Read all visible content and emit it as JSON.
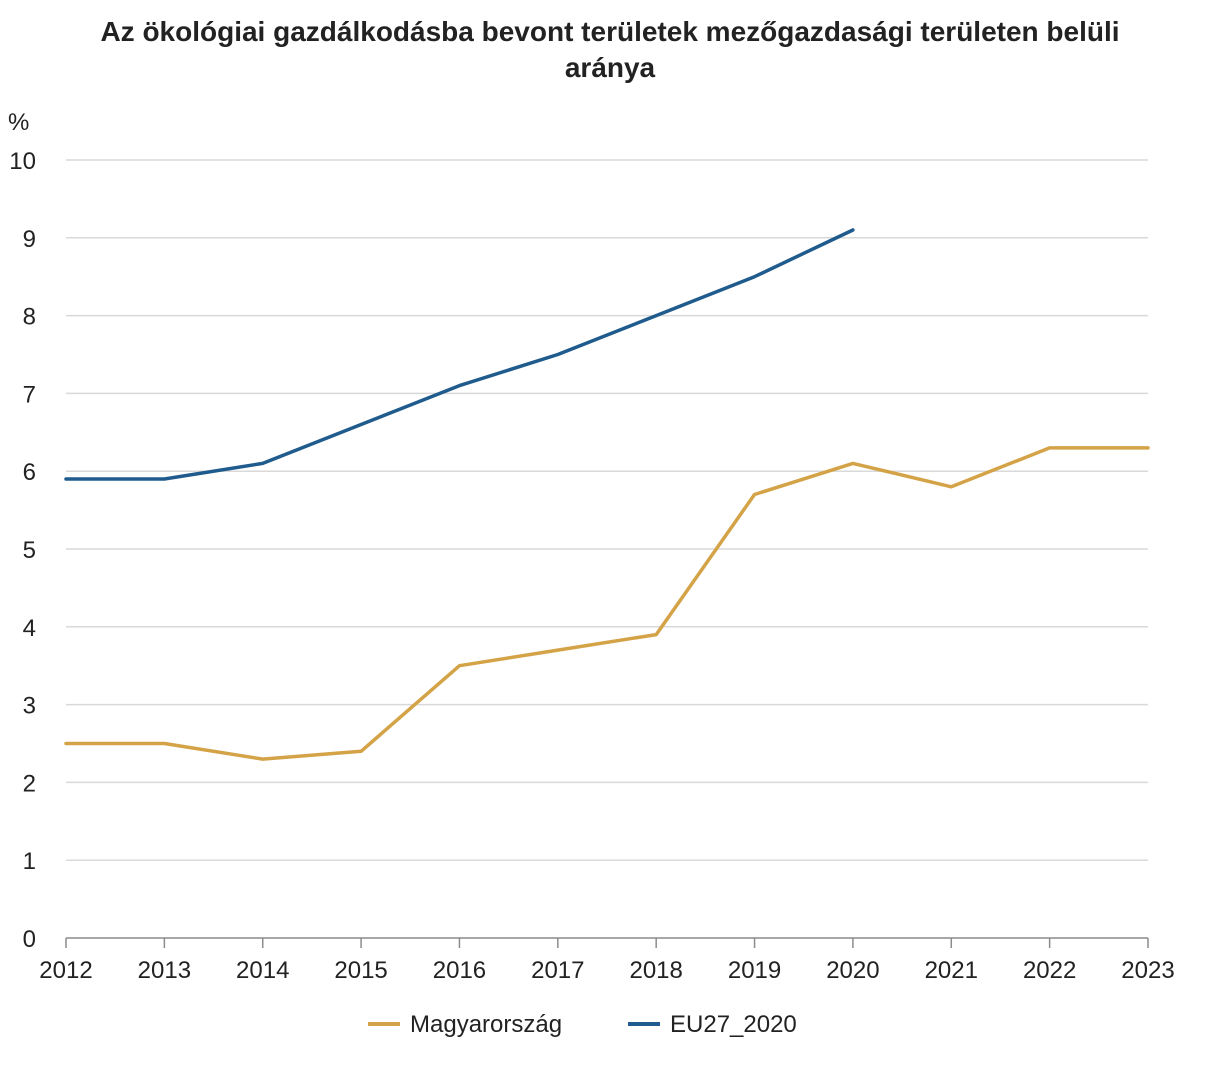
{
  "chart_data": {
    "type": "line",
    "title": "Az ökológiai gazdálkodásba bevont területek mezőgazdasági területen belüli aránya",
    "ylabel": "%",
    "xlabel": "",
    "x": [
      "2012",
      "2013",
      "2014",
      "2015",
      "2016",
      "2017",
      "2018",
      "2019",
      "2020",
      "2021",
      "2022",
      "2023"
    ],
    "ylim": [
      0,
      10
    ],
    "yticks": [
      0,
      1,
      2,
      3,
      4,
      5,
      6,
      7,
      8,
      9,
      10
    ],
    "grid": "horizontal",
    "legend_position": "bottom",
    "series": [
      {
        "name": "Magyarország",
        "color": "#D4A347",
        "values": [
          2.5,
          2.5,
          2.3,
          2.4,
          3.5,
          3.7,
          3.9,
          5.7,
          6.1,
          5.8,
          6.3,
          6.3
        ]
      },
      {
        "name": "EU27_2020",
        "color": "#1F5B8C",
        "values": [
          5.9,
          5.9,
          6.1,
          6.6,
          7.1,
          7.5,
          8.0,
          8.5,
          9.1,
          null,
          null,
          null
        ]
      }
    ]
  }
}
